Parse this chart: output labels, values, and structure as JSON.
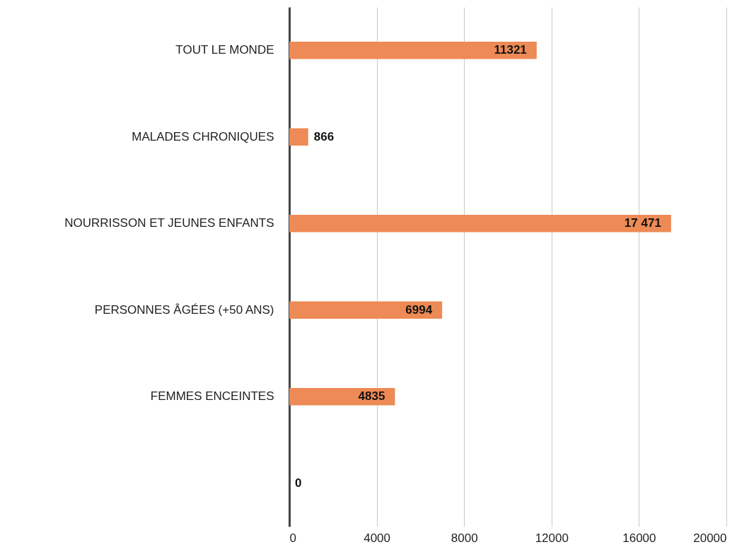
{
  "chart_data": {
    "type": "bar",
    "orientation": "horizontal",
    "categories": [
      "TOUT LE MONDE",
      "MALADES CHRONIQUES",
      "NOURRISSON ET JEUNES ENFANTS",
      "PERSONNES ÂGÉES (+50 ANS)",
      "FEMMES ENCEINTES",
      null
    ],
    "values": [
      11321,
      866,
      17471,
      6994,
      4835,
      0
    ],
    "value_labels": [
      "11321",
      "866",
      "17 471",
      "6994",
      "4835",
      "0"
    ],
    "color": "#ed8a55",
    "xlim": [
      0,
      20000
    ],
    "xticks": [
      0,
      4000,
      8000,
      12000,
      16000,
      20000
    ],
    "grid": "x"
  }
}
